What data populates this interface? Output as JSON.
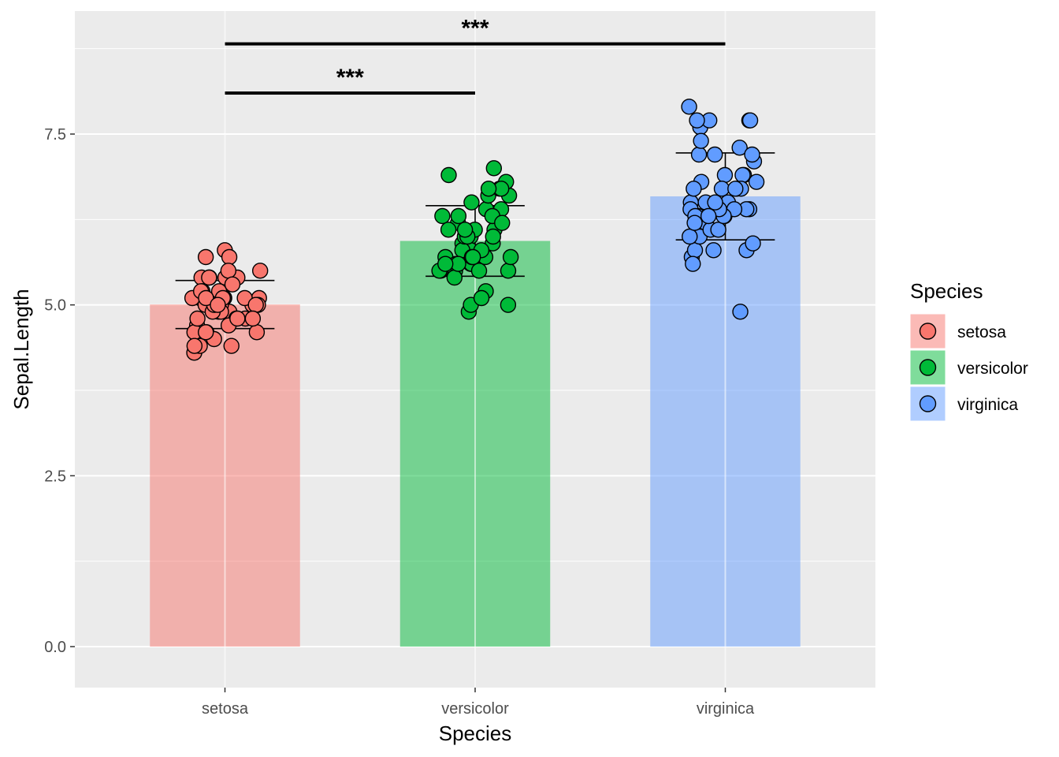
{
  "chart_data": {
    "type": "bar",
    "xlabel": "Species",
    "ylabel": "Sepal.Length",
    "categories": [
      "setosa",
      "versicolor",
      "virginica"
    ],
    "values": [
      5.006,
      5.936,
      6.588
    ],
    "sd": [
      0.352,
      0.516,
      0.636
    ],
    "ylim": [
      -0.6,
      9.3
    ],
    "yticks": [
      0.0,
      2.5,
      5.0,
      7.5
    ],
    "ytick_labels": [
      "0.0",
      "2.5",
      "5.0",
      "7.5"
    ],
    "colors": {
      "setosa": "#F8766D",
      "versicolor": "#00BA38",
      "virginica": "#619CFF"
    },
    "points": {
      "setosa": [
        5.1,
        4.9,
        4.7,
        4.6,
        5.0,
        5.4,
        4.6,
        5.0,
        4.4,
        4.9,
        5.4,
        4.8,
        4.8,
        4.3,
        5.8,
        5.7,
        5.4,
        5.1,
        5.7,
        5.1,
        5.4,
        5.1,
        4.6,
        5.1,
        4.8,
        5.0,
        5.0,
        5.2,
        5.2,
        4.7,
        4.8,
        5.4,
        5.2,
        5.5,
        4.9,
        5.0,
        5.5,
        4.9,
        4.4,
        5.1,
        5.0,
        4.5,
        4.4,
        5.0,
        5.1,
        4.8,
        5.1,
        4.6,
        5.3,
        5.0
      ],
      "versicolor": [
        7.0,
        6.4,
        6.9,
        5.5,
        6.5,
        5.7,
        6.3,
        4.9,
        6.6,
        5.2,
        5.0,
        5.9,
        6.0,
        6.1,
        5.6,
        6.7,
        5.6,
        5.8,
        6.2,
        5.6,
        5.9,
        6.1,
        6.3,
        6.1,
        6.4,
        6.6,
        6.8,
        6.7,
        6.0,
        5.7,
        5.5,
        5.5,
        5.8,
        6.0,
        5.4,
        6.0,
        6.7,
        6.3,
        5.6,
        5.5,
        5.5,
        6.1,
        5.8,
        5.0,
        5.6,
        5.7,
        5.7,
        6.2,
        5.1,
        5.7
      ],
      "virginica": [
        6.3,
        5.8,
        7.1,
        6.3,
        6.5,
        7.6,
        4.9,
        7.3,
        6.7,
        7.2,
        6.5,
        6.4,
        6.8,
        5.7,
        5.8,
        6.4,
        6.5,
        7.7,
        7.7,
        6.0,
        6.9,
        5.6,
        7.7,
        6.3,
        6.7,
        7.2,
        6.2,
        6.1,
        6.4,
        7.2,
        7.4,
        7.9,
        6.4,
        6.3,
        6.1,
        7.7,
        6.3,
        6.4,
        6.0,
        6.9,
        6.7,
        6.9,
        5.8,
        6.8,
        6.7,
        6.7,
        6.3,
        6.5,
        6.2,
        5.9
      ]
    },
    "significance": [
      {
        "from": "setosa",
        "to": "versicolor",
        "y": 8.1,
        "label": "***"
      },
      {
        "from": "setosa",
        "to": "virginica",
        "y": 8.82,
        "label": "***"
      }
    ],
    "legend": {
      "title": "Species",
      "items": [
        "setosa",
        "versicolor",
        "virginica"
      ],
      "position": "right"
    },
    "grid": true
  }
}
